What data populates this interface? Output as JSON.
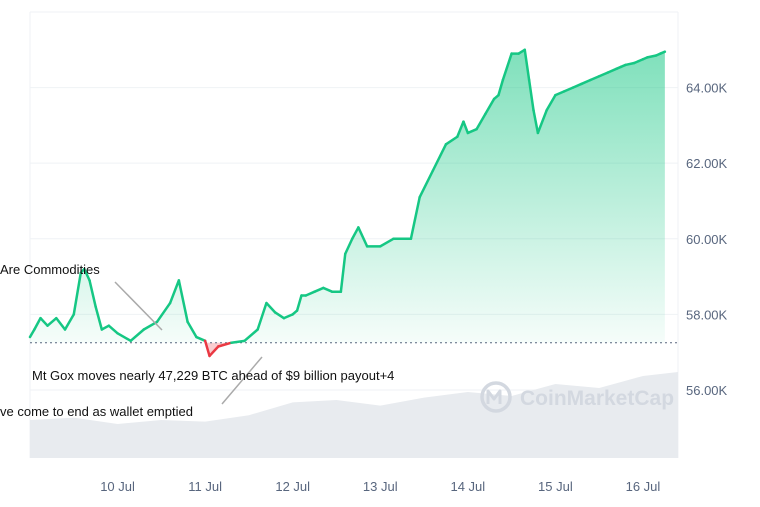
{
  "chart_data": {
    "type": "area",
    "title": "",
    "xlabel": "",
    "ylabel": "",
    "x_ticks": [
      "10 Jul",
      "11 Jul",
      "12 Jul",
      "13 Jul",
      "14 Jul",
      "15 Jul",
      "16 Jul"
    ],
    "y_ticks": [
      "56.00K",
      "58.00K",
      "60.00K",
      "62.00K",
      "64.00K"
    ],
    "ylim": [
      54200,
      66000
    ],
    "y_axis_position": "right",
    "grid": true,
    "baseline": 57250,
    "series": [
      {
        "x": [
          9.0,
          9.05,
          9.12,
          9.2,
          9.3,
          9.4,
          9.5,
          9.58,
          9.62,
          9.68,
          9.75,
          9.82,
          9.9,
          10.0,
          10.15,
          10.3,
          10.45,
          10.6,
          10.7,
          10.8,
          10.9,
          11.0,
          11.05,
          11.15,
          11.3,
          11.45,
          11.6,
          11.7,
          11.8,
          11.9,
          12.0,
          12.05,
          12.1,
          12.15,
          12.25,
          12.35,
          12.45,
          12.55,
          12.6,
          12.68,
          12.75,
          12.85,
          13.0,
          13.15,
          13.35,
          13.45,
          13.6,
          13.75,
          13.88,
          13.95,
          14.0,
          14.1,
          14.2,
          14.3,
          14.35,
          14.4,
          14.5,
          14.58,
          14.65,
          14.7,
          14.75,
          14.8,
          14.9,
          15.0,
          15.1,
          15.2,
          15.3,
          15.4,
          15.5,
          15.6,
          15.7,
          15.75,
          15.8,
          15.9,
          15.95,
          16.0,
          16.05,
          16.15,
          16.2,
          16.25
        ],
        "values": [
          57400,
          57600,
          57900,
          57700,
          57900,
          57600,
          58000,
          59100,
          59200,
          58900,
          58200,
          57600,
          57700,
          57500,
          57300,
          57600,
          57800,
          58300,
          58900,
          57800,
          57400,
          57300,
          56900,
          57150,
          57250,
          57300,
          57600,
          58300,
          58050,
          57900,
          58000,
          58100,
          58500,
          58500,
          58600,
          58700,
          58600,
          58600,
          59600,
          60000,
          60300,
          59800,
          59800,
          60000,
          60000,
          61100,
          61800,
          62500,
          62700,
          63100,
          62800,
          62900,
          63300,
          63700,
          63800,
          64200,
          64900,
          64900,
          65000,
          64200,
          63400,
          62800,
          63400,
          63800,
          63900,
          64000,
          64100,
          64200,
          64300,
          64400,
          64500,
          64550,
          64600,
          64650,
          64700,
          64750,
          64800,
          64850,
          64900,
          64950
        ]
      }
    ],
    "volume_series": {
      "x": [
        9.0,
        9.5,
        10.0,
        10.5,
        11.0,
        11.5,
        12.0,
        12.5,
        13.0,
        13.5,
        14.0,
        14.5,
        15.0,
        15.5,
        16.0,
        16.4
      ],
      "values": [
        0.2,
        0.23,
        0.15,
        0.2,
        0.18,
        0.26,
        0.42,
        0.45,
        0.38,
        0.48,
        0.55,
        0.5,
        0.65,
        0.6,
        0.75,
        0.8
      ]
    },
    "annotations": [
      "Are Commodities",
      "Mt Gox moves nearly 47,229 BTC ahead of $9 billion payout+4",
      "ve come to end as wallet emptied"
    ],
    "colors": {
      "up": "#16c784",
      "down": "#ea3943"
    },
    "watermark": "CoinMarketCap"
  }
}
